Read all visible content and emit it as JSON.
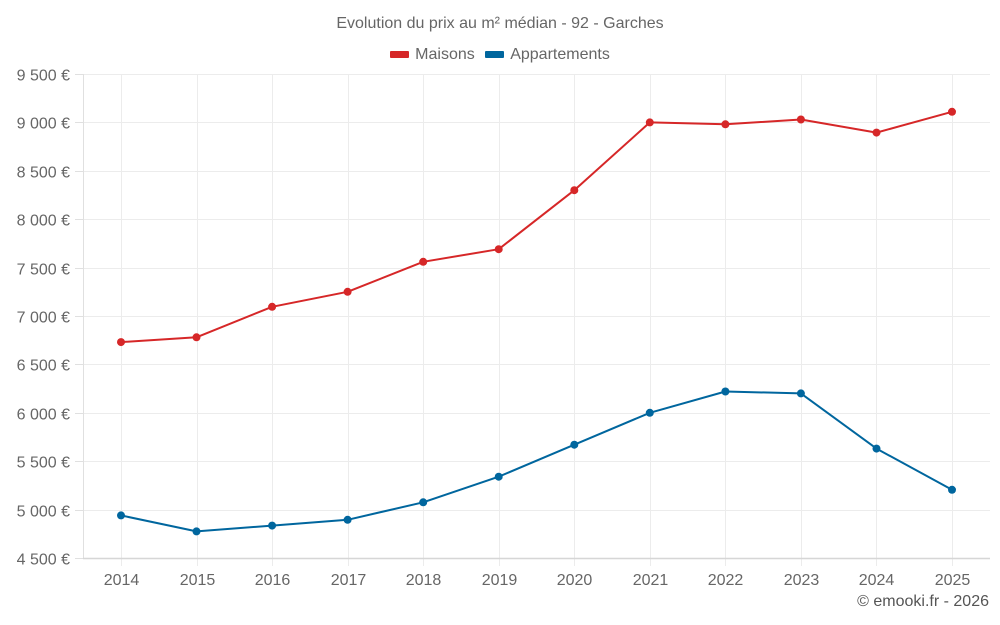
{
  "chart_data": {
    "type": "line",
    "title": "Evolution du prix au m² médian - 92 - Garches",
    "xlabel": "",
    "ylabel": "",
    "x": [
      "2014",
      "2015",
      "2016",
      "2017",
      "2018",
      "2019",
      "2020",
      "2021",
      "2022",
      "2023",
      "2024",
      "2025"
    ],
    "series": [
      {
        "name": "Maisons",
        "color": "#d62728",
        "values": [
          6730,
          6780,
          7095,
          7250,
          7560,
          7690,
          8300,
          9000,
          8980,
          9030,
          8895,
          9110
        ]
      },
      {
        "name": "Appartements",
        "color": "#00669e",
        "values": [
          4940,
          4775,
          4835,
          4895,
          5075,
          5340,
          5670,
          6000,
          6220,
          6200,
          5630,
          5205
        ]
      }
    ],
    "ylim": [
      4500,
      9500
    ],
    "yticks": [
      4500,
      5000,
      5500,
      6000,
      6500,
      7000,
      7500,
      8000,
      8500,
      9000,
      9500
    ],
    "ytick_labels": [
      "4 500 €",
      "5 000 €",
      "5 500 €",
      "6 000 €",
      "6 500 €",
      "7 000 €",
      "7 500 €",
      "8 000 €",
      "8 500 €",
      "9 000 €",
      "9 500 €"
    ],
    "grid": true,
    "legend_position": "top-center"
  },
  "credit": "© emooki.fr - 2026"
}
